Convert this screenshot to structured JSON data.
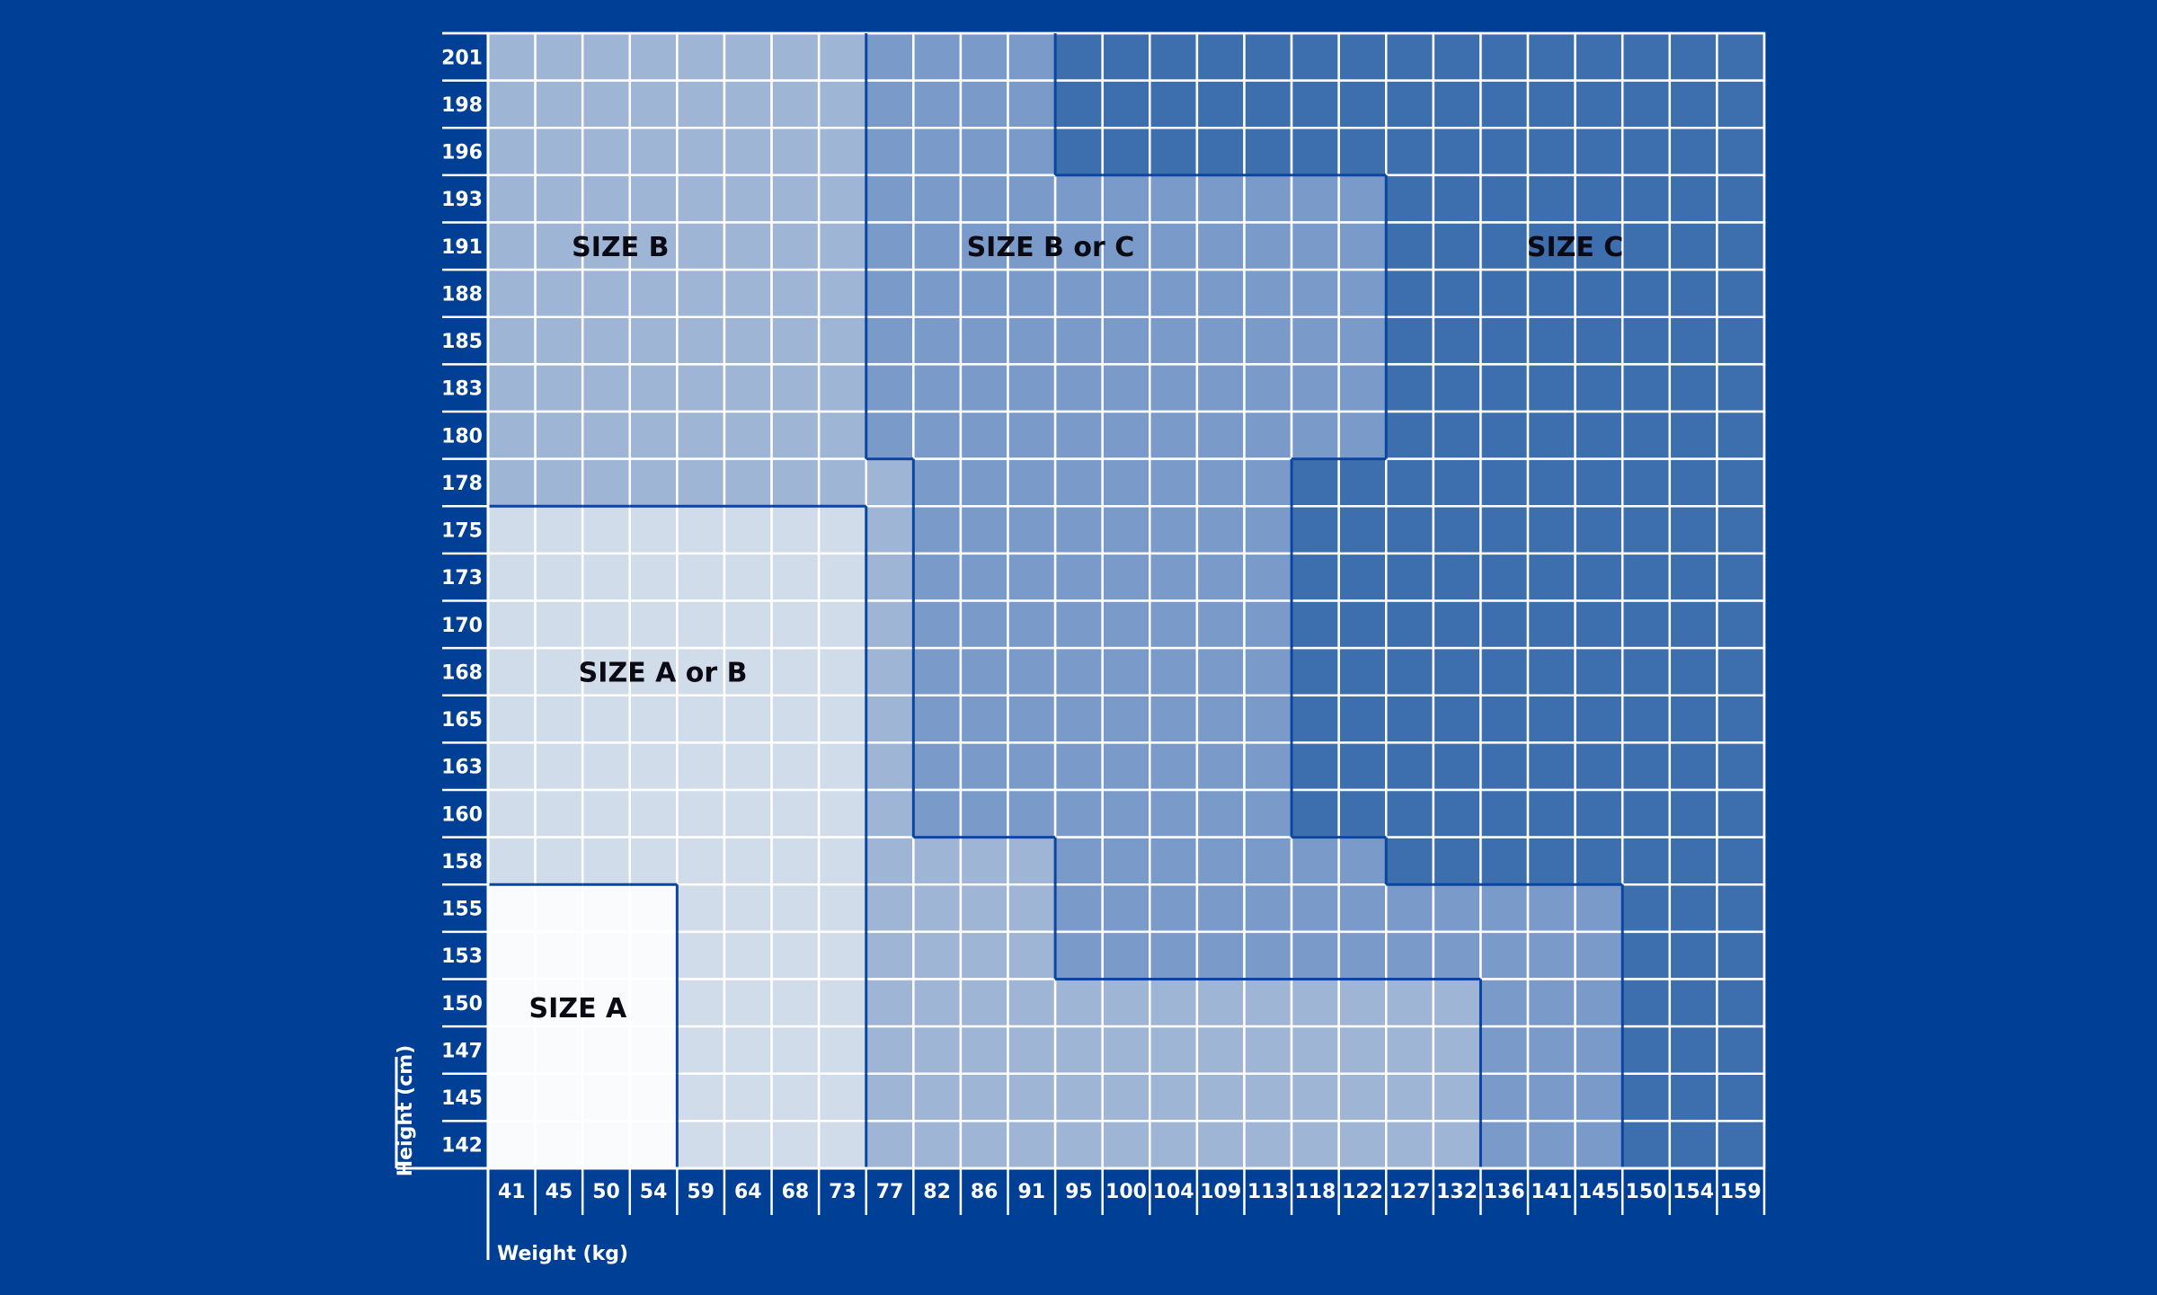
{
  "chart_data": {
    "type": "heatmap",
    "title": "",
    "xlabel": "Weight (kg)",
    "ylabel": "Height (cm)",
    "x": [
      41,
      45,
      50,
      54,
      59,
      64,
      68,
      73,
      77,
      82,
      86,
      91,
      95,
      100,
      104,
      109,
      113,
      118,
      122,
      127,
      132,
      136,
      141,
      145,
      150,
      154,
      159
    ],
    "y": [
      201,
      198,
      196,
      193,
      191,
      188,
      185,
      183,
      180,
      178,
      175,
      173,
      170,
      168,
      165,
      163,
      160,
      158,
      155,
      153,
      150,
      147,
      145,
      142
    ],
    "regions": [
      {
        "name": "SIZE A",
        "label": "SIZE A",
        "color": "#fafbfd"
      },
      {
        "name": "SIZE A or B",
        "label": "SIZE A or B",
        "color": "#d1dcea"
      },
      {
        "name": "SIZE B",
        "label": "SIZE B",
        "color": "#9eb5d5"
      },
      {
        "name": "SIZE B or C",
        "label": "SIZE B or C",
        "color": "#7a9bc9"
      },
      {
        "name": "SIZE C",
        "label": "SIZE C",
        "color": "#3d6faf"
      }
    ],
    "cells": [
      "BBBBBBBBXXXXCCCCCCCCCCCCCCC",
      "BBBBBBBBXXXXCCCCCCCCCCCCCCC",
      "BBBBBBBBXXXXCCCCCCCCCCCCCCC",
      "BBBBBBBBXXXXXXXXXXXCCCCCCCC",
      "BBBBBBBBXXXXXXXXXXXCCCCCCCC",
      "BBBBBBBBXXXXXXXXXXXCCCCCCCC",
      "BBBBBBBBXXXXXXXXXXXCCCCCCCC",
      "BBBBBBBBXXXXXXXXXXXCCCCCCCC",
      "BBBBBBBBXXXXXXXXXXXCCCCCCCC",
      "BBBBBBBBBXXXXXXXXCCCCCCCCCC",
      "DDDDDDDDBXXXXXXXXCCCCCCCCCC",
      "DDDDDDDDBXXXXXXXXCCCCCCCCCC",
      "DDDDDDDDBXXXXXXXXCCCCCCCCCC",
      "DDDDDDDDBXXXXXXXXCCCCCCCCCC",
      "DDDDDDDDBXXXXXXXXCCCCCCCCCC",
      "DDDDDDDDBXXXXXXXXCCCCCCCCCC",
      "DDDDDDDDBXXXXXXXXCCCCCCCCCC",
      "DDDDDDDDBBBBXXXXXXXCCCCCCCC",
      "AAAADDDDBBBBXXXXXXXXXXXXCCC",
      "AAAADDDDBBBBXXXXXXXXXXXXCCC",
      "AAAADDDDBBBBBBBBBBBBBXXXCCC",
      "AAAADDDDBBBBBBBBBBBBBXXXCCC",
      "AAAADDDDBBBBBBBBBBBBBXXXCCC",
      "AAAADDDDBBBBBBBBBBBBBXXXCCC"
    ],
    "cell_key": {
      "A": "SIZE A",
      "D": "SIZE A or B",
      "B": "SIZE B",
      "X": "SIZE B or C",
      "C": "SIZE C"
    },
    "grid": true
  }
}
